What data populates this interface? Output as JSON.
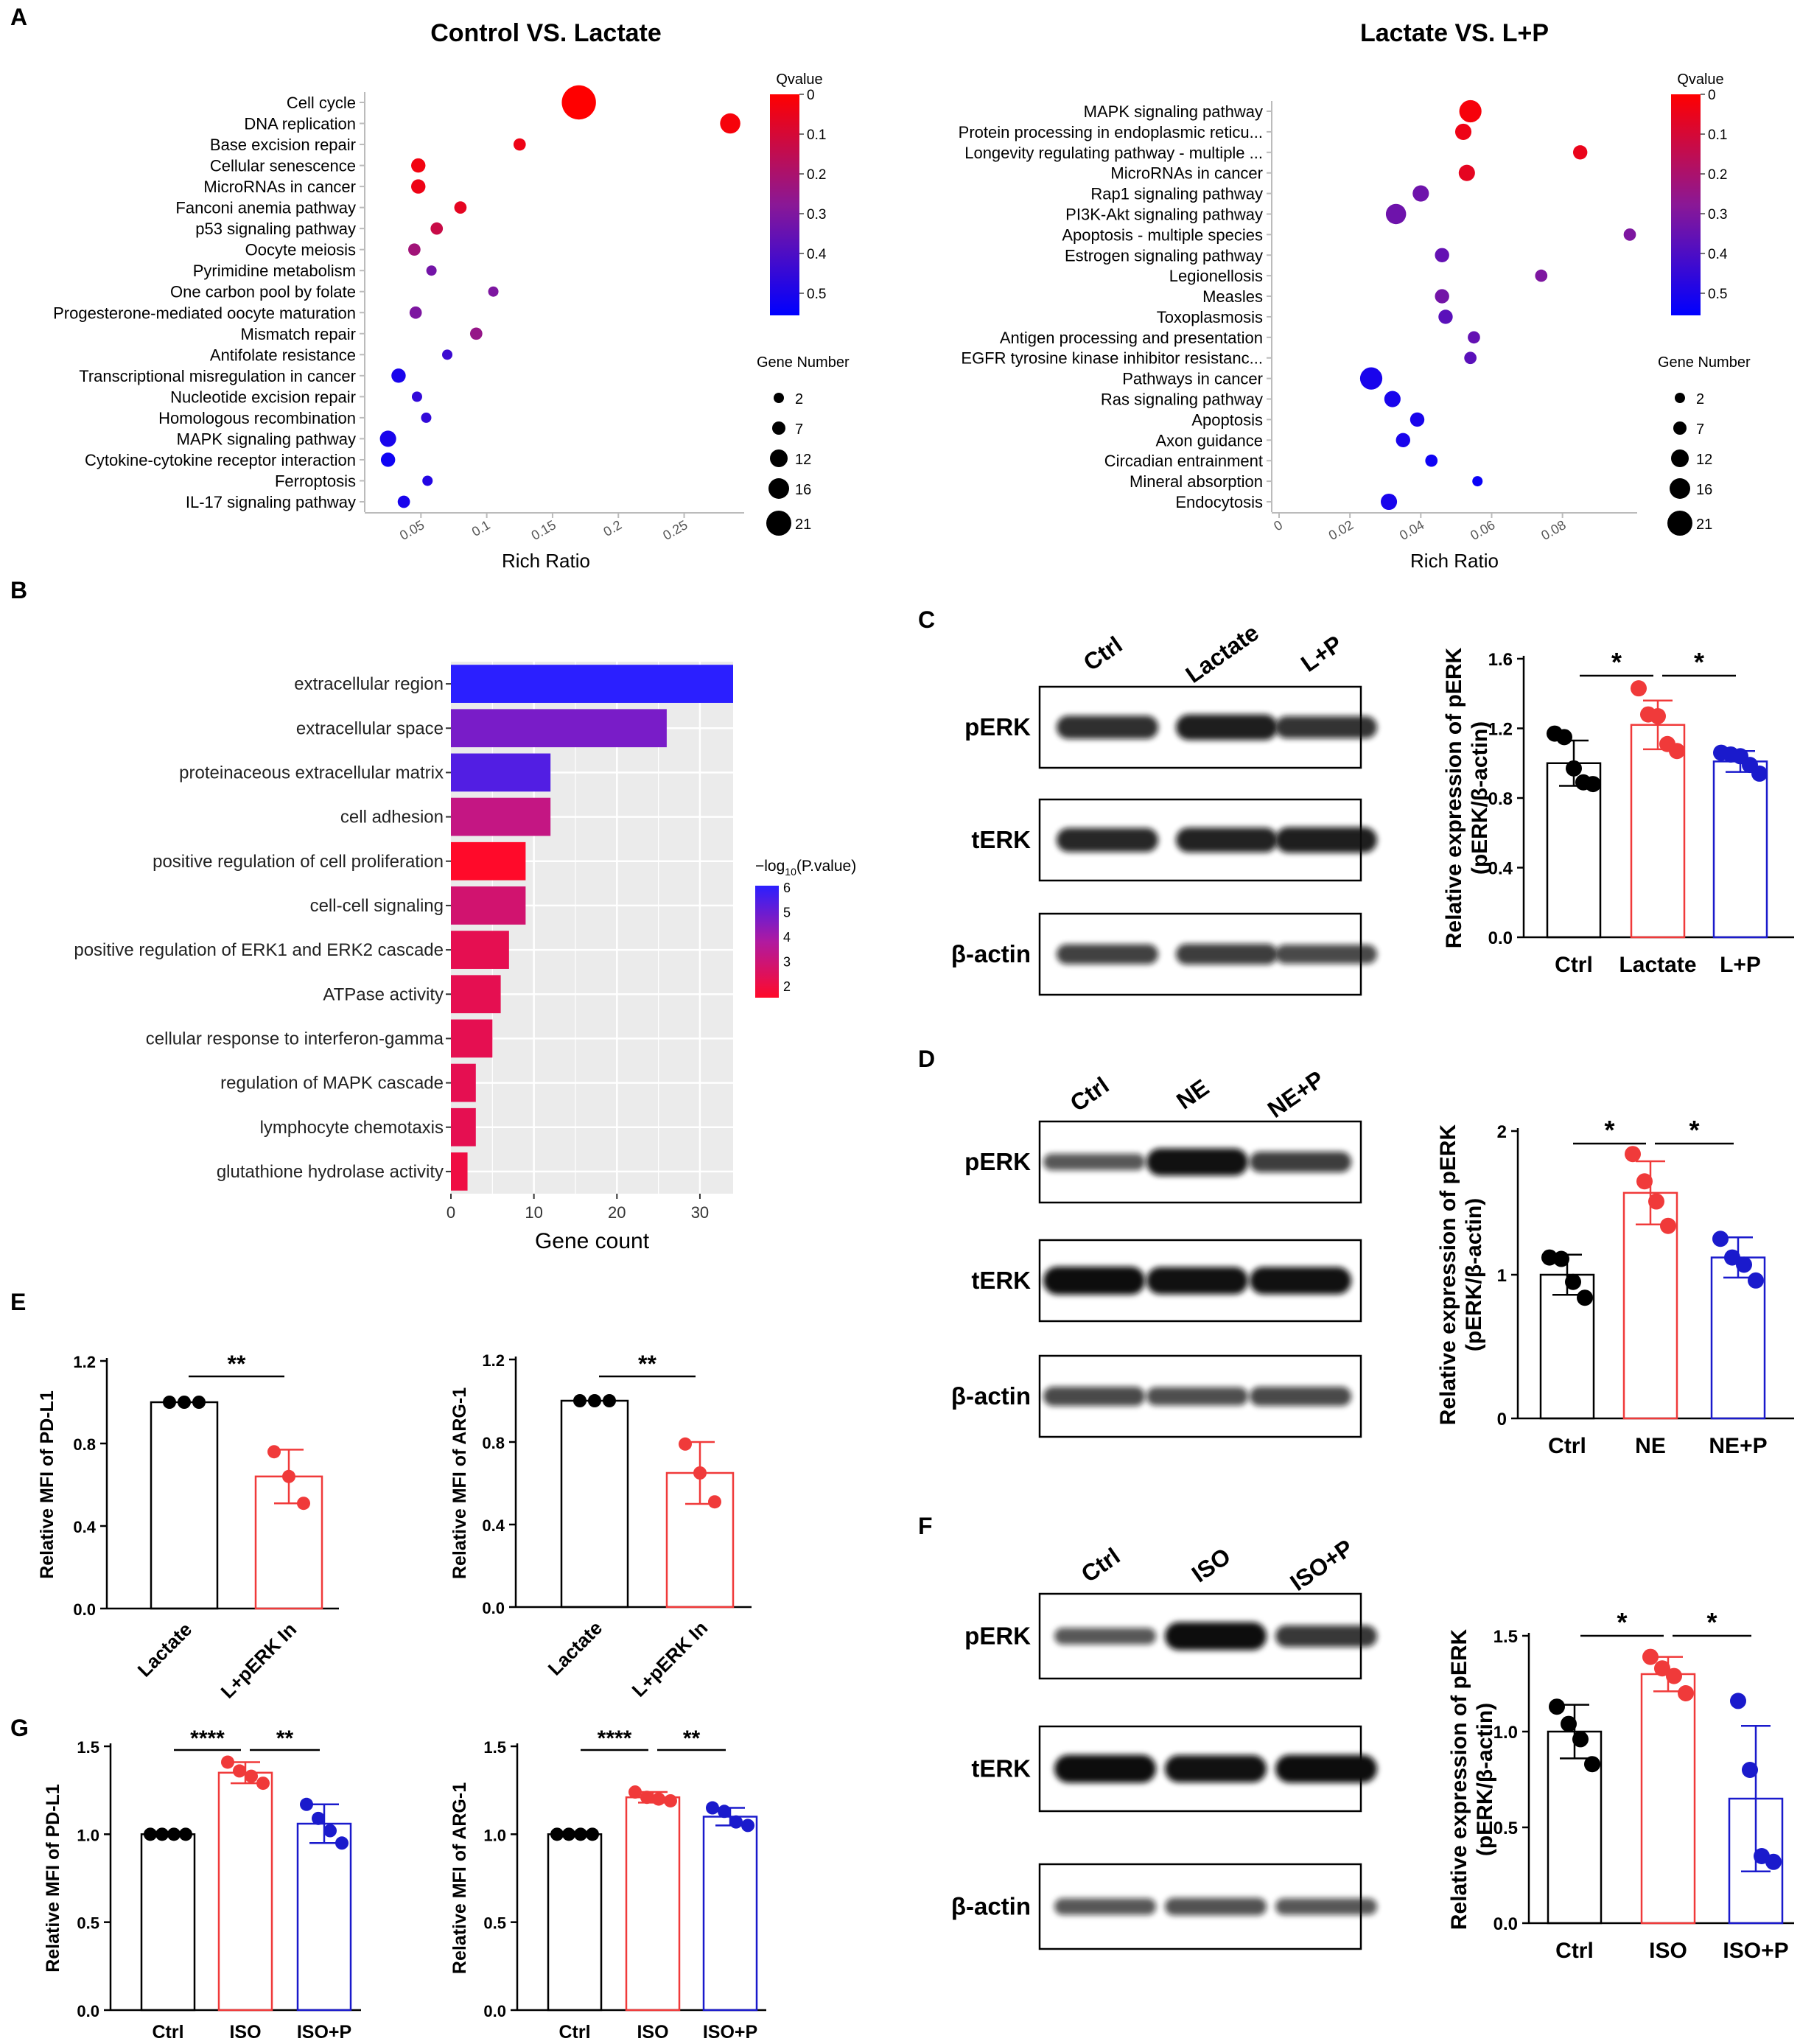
{
  "panel_letters": [
    "A",
    "B",
    "C",
    "D",
    "E",
    "F",
    "G"
  ],
  "chart_data": [
    {
      "id": "A1",
      "type": "scatter",
      "title": "Control VS. Lactate",
      "xlabel": "Rich Ratio",
      "ticks": [
        0.05,
        0.1,
        0.15,
        0.2,
        0.25
      ],
      "tick_labels": [
        "0.05",
        "0.1",
        "0.15",
        "0.2",
        "0.25"
      ],
      "xlim": [
        0.0,
        0.29
      ],
      "terms": [
        "Cell cycle",
        "DNA replication",
        "Base excision repair",
        "Cellular senescence",
        "MicroRNAs in cancer",
        "Fanconi anemia pathway",
        "p53 signaling pathway",
        "Oocyte meiosis",
        "Pyrimidine metabolism",
        "One carbon pool by folate",
        "Progesterone-mediated oocyte maturation",
        "Mismatch repair",
        "Antifolate resistance",
        "Transcriptional misregulation in cancer",
        "Nucleotide excision repair",
        "Homologous recombination",
        "MAPK signaling pathway",
        "Cytokine-cytokine receptor interaction",
        "Ferroptosis",
        "IL-17 signaling pathway"
      ],
      "rich_ratio": [
        0.17,
        0.285,
        0.125,
        0.048,
        0.048,
        0.08,
        0.062,
        0.045,
        0.058,
        0.105,
        0.046,
        0.092,
        0.07,
        0.033,
        0.047,
        0.054,
        0.025,
        0.025,
        0.055,
        0.037
      ],
      "qvalue": [
        0.0,
        0.02,
        0.04,
        0.03,
        0.04,
        0.06,
        0.13,
        0.22,
        0.32,
        0.3,
        0.3,
        0.25,
        0.43,
        0.5,
        0.45,
        0.45,
        0.5,
        0.52,
        0.48,
        0.5
      ],
      "gene_number": [
        16,
        9,
        5,
        6,
        6,
        5,
        5,
        5,
        4,
        4,
        5,
        5,
        4,
        6,
        4,
        4,
        7,
        6,
        4,
        5
      ],
      "color_legend": {
        "title": "Qvalue",
        "ticks": [
          "0",
          "0.1",
          "0.2",
          "0.3",
          "0.4",
          "0.5"
        ]
      },
      "size_legend": {
        "title": "Gene Number",
        "values": [
          "2",
          "7",
          "12",
          "16",
          "21"
        ]
      }
    },
    {
      "id": "A2",
      "type": "scatter",
      "title": "Lactate VS. L+P",
      "xlabel": "Rich Ratio",
      "ticks": [
        0,
        0.02,
        0.04,
        0.06,
        0.08
      ],
      "tick_labels": [
        "0",
        "0.02",
        "0.04",
        "0.06",
        "0.08"
      ],
      "xlim": [
        0.0,
        0.099
      ],
      "terms": [
        "MAPK signaling pathway",
        "Protein processing in endoplasmic reticu...",
        "Longevity regulating pathway - multiple ...",
        "MicroRNAs in cancer",
        "Rap1 signaling pathway",
        "PI3K-Akt signaling pathway",
        "Apoptosis - multiple species",
        "Estrogen signaling pathway",
        "Legionellosis",
        "Measles",
        "Toxoplasmosis",
        "Antigen processing and presentation",
        "EGFR tyrosine kinase inhibitor resistanc...",
        "Pathways in cancer",
        "Ras signaling pathway",
        "Apoptosis",
        "Axon guidance",
        "Circadian entrainment",
        "Mineral absorption",
        "Endocytosis"
      ],
      "rich_ratio": [
        0.054,
        0.052,
        0.085,
        0.053,
        0.04,
        0.033,
        0.099,
        0.046,
        0.074,
        0.046,
        0.047,
        0.055,
        0.054,
        0.026,
        0.032,
        0.039,
        0.035,
        0.043,
        0.056,
        0.031
      ],
      "qvalue": [
        0.02,
        0.04,
        0.05,
        0.06,
        0.33,
        0.33,
        0.3,
        0.35,
        0.3,
        0.32,
        0.37,
        0.35,
        0.37,
        0.5,
        0.5,
        0.5,
        0.5,
        0.52,
        0.53,
        0.5
      ],
      "gene_number": [
        10,
        7,
        6,
        7,
        7,
        9,
        5,
        6,
        5,
        6,
        6,
        5,
        5,
        10,
        7,
        6,
        6,
        5,
        4,
        7
      ],
      "color_legend": {
        "title": "Qvalue",
        "ticks": [
          "0",
          "0.1",
          "0.2",
          "0.3",
          "0.4",
          "0.5"
        ]
      },
      "size_legend": {
        "title": "Gene Number",
        "values": [
          "2",
          "7",
          "12",
          "16",
          "21"
        ]
      }
    },
    {
      "id": "B",
      "type": "bar",
      "orientation": "horizontal",
      "xlabel": "Gene count",
      "categories": [
        "extracellular region",
        "extracellular space",
        "proteinaceous extracellular matrix",
        "cell adhesion",
        "positive regulation of cell proliferation",
        "cell-cell signaling",
        "positive regulation of ERK1 and ERK2 cascade",
        "ATPase activity",
        "cellular response to interferon-gamma",
        "regulation of MAPK cascade",
        "lymphocyte chemotaxis",
        "glutathione hydrolase activity"
      ],
      "values": [
        34,
        26,
        12,
        12,
        9,
        9,
        7,
        6,
        5,
        3,
        3,
        2
      ],
      "neg_log10_p": [
        6.0,
        4.6,
        5.3,
        3.0,
        1.2,
        2.6,
        2.0,
        2.0,
        2.0,
        2.0,
        2.0,
        1.7
      ],
      "xticks": [
        0,
        10,
        20,
        30
      ],
      "tick_labels": [
        "0",
        "10",
        "20",
        "30"
      ],
      "xlim": [
        0,
        34
      ],
      "color_legend": {
        "title_prefix": "−log",
        "title_sub": "10",
        "title_suffix": "(P.value)",
        "ticks": [
          "6",
          "5",
          "4",
          "3",
          "2"
        ]
      }
    },
    {
      "id": "C",
      "type": "bar",
      "ylabel_line1": "Relative expression of pERK",
      "ylabel_line2": "(pERK/β-actin)",
      "categories": [
        "Ctrl",
        "Lactate",
        "L+P"
      ],
      "values": [
        1.0,
        1.22,
        1.01
      ],
      "sd": [
        0.13,
        0.14,
        0.06
      ],
      "points": [
        [
          1.17,
          1.15,
          0.97,
          0.89,
          0.88
        ],
        [
          1.43,
          1.28,
          1.27,
          1.11,
          1.07
        ],
        [
          1.06,
          1.05,
          1.04,
          0.99,
          0.94
        ]
      ],
      "yticks": [
        0,
        0.4,
        0.8,
        1.2,
        1.6
      ],
      "tick_labels": [
        "0.0",
        "0.4",
        "0.8",
        "1.2",
        "1.6"
      ],
      "ylim": [
        0,
        1.6
      ],
      "sig": [
        {
          "from": 0,
          "to": 1,
          "label": "*"
        },
        {
          "from": 1,
          "to": 2,
          "label": "*"
        }
      ],
      "blot_lanes": [
        "Ctrl",
        "Lactate",
        "L+P"
      ],
      "blot_rows": [
        "pERK",
        "tERK",
        "β-actin"
      ]
    },
    {
      "id": "D",
      "type": "bar",
      "ylabel_line1": "Relative expression of pERK",
      "ylabel_line2": "(pERK/β-actin)",
      "categories": [
        "Ctrl",
        "NE",
        "NE+P"
      ],
      "values": [
        1.0,
        1.57,
        1.12
      ],
      "sd": [
        0.14,
        0.22,
        0.14
      ],
      "points": [
        [
          1.12,
          1.11,
          0.95,
          0.84
        ],
        [
          1.84,
          1.65,
          1.51,
          1.34
        ],
        [
          1.25,
          1.12,
          1.07,
          0.96
        ]
      ],
      "yticks": [
        0,
        1,
        2
      ],
      "tick_labels": [
        "0",
        "1",
        "2"
      ],
      "ylim": [
        0,
        2
      ],
      "sig": [
        {
          "from": 0,
          "to": 1,
          "label": "*"
        },
        {
          "from": 1,
          "to": 2,
          "label": "*"
        }
      ],
      "blot_lanes": [
        "Ctrl",
        "NE",
        "NE+P"
      ],
      "blot_rows": [
        "pERK",
        "tERK",
        "β-actin"
      ]
    },
    {
      "id": "E1",
      "type": "bar",
      "ylabel": "Relative MFI of PD-L1",
      "categories": [
        "Lactate",
        "L+pERK In"
      ],
      "values": [
        1.0,
        0.64
      ],
      "sd": [
        0.0,
        0.13
      ],
      "points": [
        [
          1.0,
          1.0,
          1.0
        ],
        [
          0.76,
          0.64,
          0.51
        ]
      ],
      "yticks": [
        0,
        0.4,
        0.8,
        1.2
      ],
      "tick_labels": [
        "0.0",
        "0.4",
        "0.8",
        "1.2"
      ],
      "ylim": [
        0,
        1.2
      ],
      "sig": [
        {
          "from": 0,
          "to": 1,
          "label": "**"
        }
      ]
    },
    {
      "id": "E2",
      "type": "bar",
      "ylabel": "Relative MFI of ARG-1",
      "categories": [
        "Lactate",
        "L+pERK In"
      ],
      "values": [
        1.0,
        0.65
      ],
      "sd": [
        0.0,
        0.15
      ],
      "points": [
        [
          1.0,
          1.0,
          1.0
        ],
        [
          0.79,
          0.65,
          0.51
        ]
      ],
      "yticks": [
        0,
        0.4,
        0.8,
        1.2
      ],
      "tick_labels": [
        "0.0",
        "0.4",
        "0.8",
        "1.2"
      ],
      "ylim": [
        0,
        1.2
      ],
      "sig": [
        {
          "from": 0,
          "to": 1,
          "label": "**"
        }
      ]
    },
    {
      "id": "F",
      "type": "bar",
      "ylabel_line1": "Relative expression of pERK",
      "ylabel_line2": "(pERK/β-actin)",
      "categories": [
        "Ctrl",
        "ISO",
        "ISO+P"
      ],
      "values": [
        1.0,
        1.3,
        0.65
      ],
      "sd": [
        0.14,
        0.09,
        0.38
      ],
      "points": [
        [
          1.13,
          1.04,
          0.96,
          0.83
        ],
        [
          1.39,
          1.33,
          1.29,
          1.2
        ],
        [
          1.16,
          0.8,
          0.35,
          0.32
        ]
      ],
      "yticks": [
        0,
        0.5,
        1.0,
        1.5
      ],
      "tick_labels": [
        "0.0",
        "0.5",
        "1.0",
        "1.5"
      ],
      "ylim": [
        0,
        1.5
      ],
      "sig": [
        {
          "from": 0,
          "to": 1,
          "label": "*"
        },
        {
          "from": 1,
          "to": 2,
          "label": "*"
        }
      ],
      "blot_lanes": [
        "Ctrl",
        "ISO",
        "ISO+P"
      ],
      "blot_rows": [
        "pERK",
        "tERK",
        "β-actin"
      ]
    },
    {
      "id": "G1",
      "type": "bar",
      "ylabel": "Relative MFI of PD-L1",
      "categories": [
        "Ctrl",
        "ISO",
        "ISO+P"
      ],
      "values": [
        1.0,
        1.35,
        1.06
      ],
      "sd": [
        0.0,
        0.06,
        0.11
      ],
      "points": [
        [
          1.0,
          1.0,
          1.0,
          1.0
        ],
        [
          1.41,
          1.36,
          1.33,
          1.29
        ],
        [
          1.17,
          1.09,
          1.02,
          0.95
        ]
      ],
      "yticks": [
        0,
        0.5,
        1.0,
        1.5
      ],
      "tick_labels": [
        "0.0",
        "0.5",
        "1.0",
        "1.5"
      ],
      "ylim": [
        0,
        1.5
      ],
      "sig": [
        {
          "from": 0,
          "to": 1,
          "label": "****"
        },
        {
          "from": 1,
          "to": 2,
          "label": "**"
        }
      ]
    },
    {
      "id": "G2",
      "type": "bar",
      "ylabel": "Relative MFI of ARG-1",
      "categories": [
        "Ctrl",
        "ISO",
        "ISO+P"
      ],
      "values": [
        1.0,
        1.21,
        1.1
      ],
      "sd": [
        0.0,
        0.03,
        0.05
      ],
      "points": [
        [
          1.0,
          1.0,
          1.0,
          1.0
        ],
        [
          1.24,
          1.21,
          1.2,
          1.19
        ],
        [
          1.15,
          1.13,
          1.07,
          1.05
        ]
      ],
      "yticks": [
        0,
        0.5,
        1.0,
        1.5
      ],
      "tick_labels": [
        "0.0",
        "0.5",
        "1.0",
        "1.5"
      ],
      "ylim": [
        0,
        1.5
      ],
      "sig": [
        {
          "from": 0,
          "to": 1,
          "label": "****"
        },
        {
          "from": 1,
          "to": 2,
          "label": "**"
        }
      ]
    }
  ]
}
